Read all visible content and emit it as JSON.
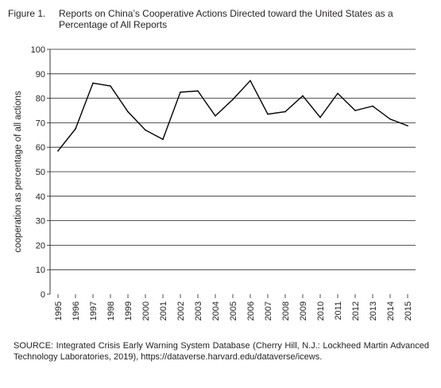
{
  "figure": {
    "label": "Figure 1.",
    "title": "Reports on China’s Cooperative Actions Directed toward the United States as a Percentage of All Reports",
    "source": "SOURCE: Integrated Crisis Early Warning System Database (Cherry Hill, N.J.: Lockheed Martin Advanced Technology Laboratories, 2019), https://dataverse.harvard.edu/dataverse/icews."
  },
  "chart_data": {
    "type": "line",
    "title": "",
    "xlabel": "",
    "ylabel": "cooperation as percentage of all actions",
    "x": [
      "1995",
      "1996",
      "1997",
      "1998",
      "1999",
      "2000",
      "2001",
      "2002",
      "2003",
      "2004",
      "2005",
      "2006",
      "2007",
      "2008",
      "2009",
      "2010",
      "2011",
      "2012",
      "2013",
      "2014",
      "2015"
    ],
    "series": [
      {
        "values": [
          58.5,
          67.5,
          86.2,
          85.0,
          74.5,
          67.0,
          63.2,
          82.5,
          83.0,
          72.8,
          79.5,
          87.2,
          73.5,
          74.5,
          81.0,
          72.2,
          82.0,
          75.0,
          76.8,
          71.5,
          68.8
        ]
      }
    ],
    "yticks": [
      "0",
      "10",
      "20",
      "30",
      "40",
      "50",
      "60",
      "70",
      "80",
      "90",
      "100"
    ],
    "ylim": [
      0,
      100
    ],
    "grid": "horizontal",
    "line_color": "#000000",
    "grid_color": "#231f20"
  }
}
